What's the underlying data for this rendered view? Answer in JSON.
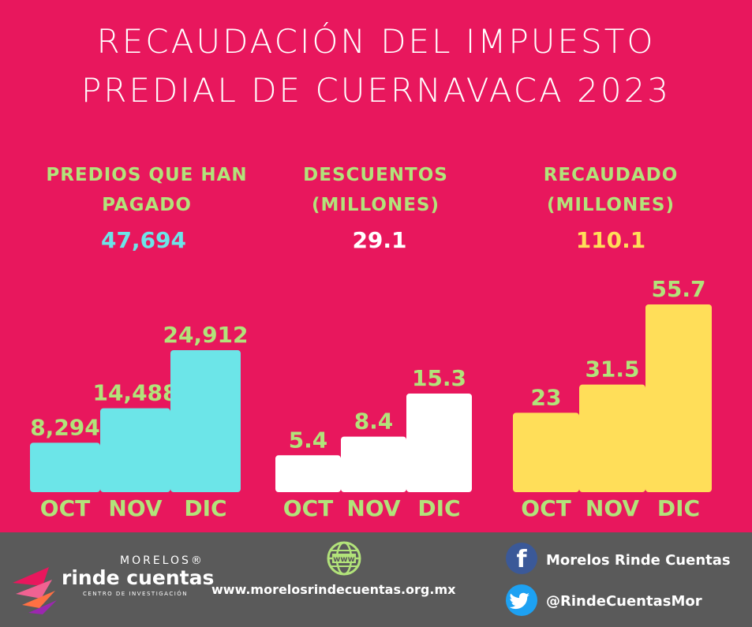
{
  "title": {
    "line1": "RECAUDACIÓN DEL IMPUESTO",
    "line2": "PREDIAL DE CUERNAVACA 2023"
  },
  "panels": [
    {
      "head_line1": "PREDIOS QUE HAN",
      "head_line2": "PAGADO",
      "total": "47,694",
      "color": "#6ce5e8"
    },
    {
      "head_line1": "DESCUENTOS",
      "head_line2": "(MILLONES)",
      "total": "29.1",
      "color": "#ffffff"
    },
    {
      "head_line1": "RECAUDADO",
      "head_line2": "(MILLONES)",
      "total": "110.1",
      "color": "#ffde59"
    }
  ],
  "chart_data": [
    {
      "type": "bar",
      "categories": [
        "OCT",
        "NOV",
        "DIC"
      ],
      "values": [
        8294,
        14488,
        24912
      ],
      "labels": [
        "8,294",
        "14,488",
        "24,912"
      ],
      "ylim": [
        0,
        24912
      ],
      "color": "#6ce5e8",
      "grid": false
    },
    {
      "type": "bar",
      "categories": [
        "OCT",
        "NOV",
        "DIC"
      ],
      "values": [
        5.4,
        8.4,
        15.3
      ],
      "labels": [
        "5.4",
        "8.4",
        "15.3"
      ],
      "ylim": [
        0,
        15.3
      ],
      "color": "#ffffff",
      "grid": false
    },
    {
      "type": "bar",
      "categories": [
        "OCT",
        "NOV",
        "DIC"
      ],
      "values": [
        23,
        31.5,
        55.7
      ],
      "labels": [
        "23",
        "31.5",
        "55.7"
      ],
      "ylim": [
        0,
        55.7
      ],
      "color": "#ffde59",
      "grid": false
    }
  ],
  "footer": {
    "logo_top": "MORELOS®",
    "logo_main": "rinde cuentas",
    "logo_sub": "CENTRO DE INVESTIGACIÓN",
    "website_icon": "www-globe-icon",
    "website_icon_text": "www",
    "website": "www.morelosrindecuentas.org.mx",
    "facebook_glyph": "f",
    "facebook": "Morelos Rinde Cuentas",
    "twitter": "@RindeCuentasMor"
  },
  "colors": {
    "background": "#e8175d",
    "label_green": "#b2e37a",
    "footer_gray": "#5a5a5a"
  }
}
